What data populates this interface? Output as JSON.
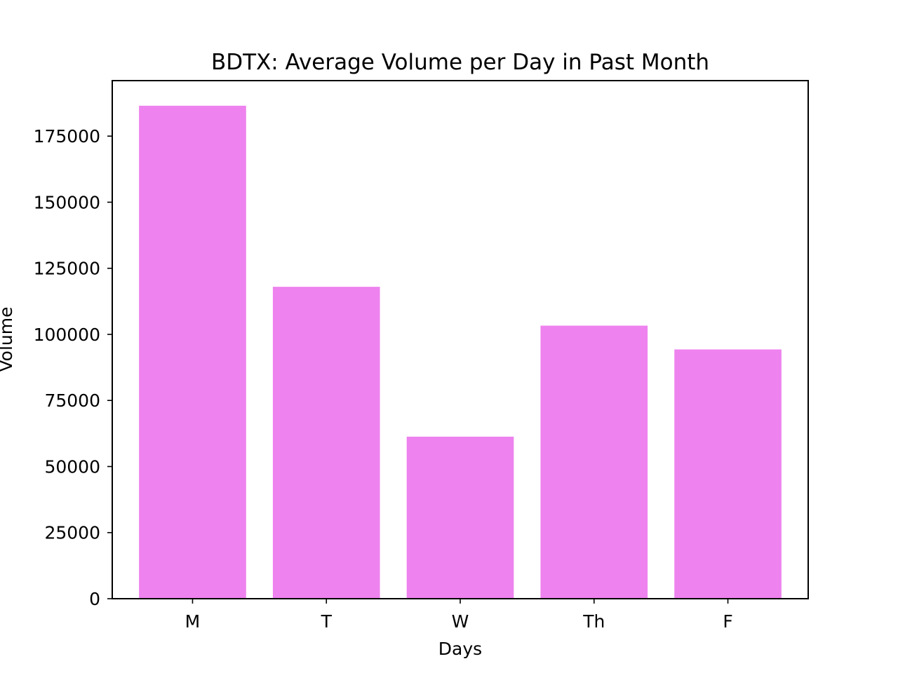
{
  "chart_data": {
    "type": "bar",
    "title": "BDTX: Average Volume per Day in Past Month",
    "xlabel": "Days",
    "ylabel": "Volume",
    "categories": [
      "M",
      "T",
      "W",
      "Th",
      "F"
    ],
    "values": [
      186500,
      118000,
      61300,
      103300,
      94300
    ],
    "ylim": [
      0,
      196000
    ],
    "yticks": [
      0,
      25000,
      50000,
      75000,
      100000,
      125000,
      150000,
      175000
    ],
    "ytick_labels": [
      "0",
      "25000",
      "50000",
      "75000",
      "100000",
      "125000",
      "150000",
      "175000"
    ],
    "bar_color": "#ee82ee",
    "grid": false,
    "legend": "none"
  }
}
